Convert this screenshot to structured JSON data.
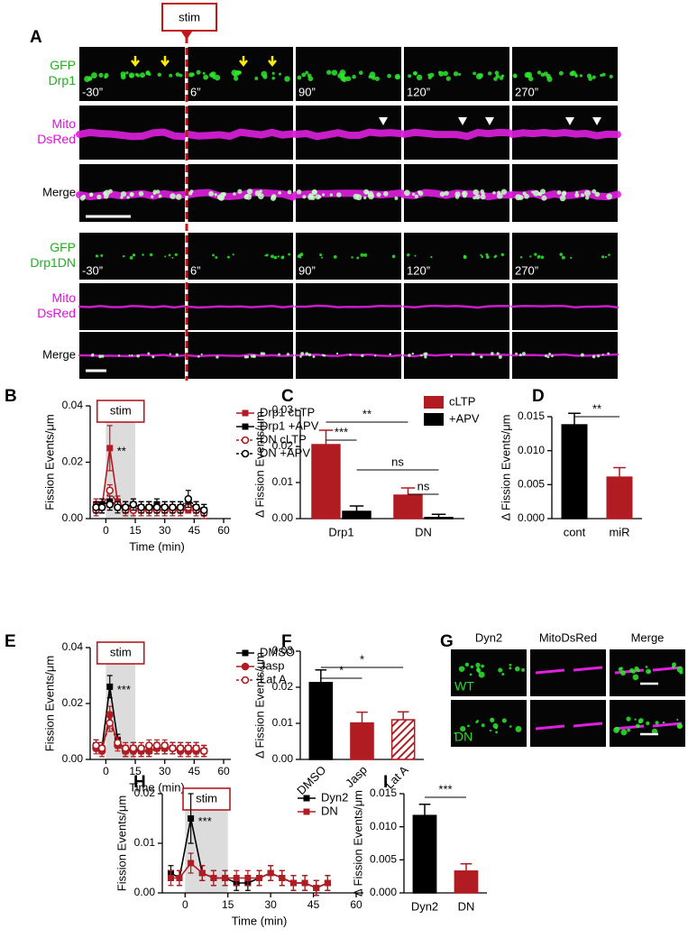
{
  "panel_labels": [
    "A",
    "B",
    "C",
    "D",
    "E",
    "F",
    "G",
    "H",
    "I"
  ],
  "panel_a": {
    "stim_label": "stim",
    "rows": [
      [
        "GFP",
        "Drp1"
      ],
      [
        "Mito",
        "DsRed"
      ],
      [
        "Merge"
      ],
      [
        "GFP",
        "Drp1DN"
      ],
      [
        "Mito",
        "DsRed"
      ],
      [
        "Merge"
      ]
    ],
    "time_labels": [
      "-30”",
      "6”",
      "90”",
      "120”",
      "270”"
    ]
  },
  "panel_g": {
    "headers": [
      "Dyn2",
      "MitoDsRed",
      "Merge"
    ],
    "rows": [
      "WT",
      "DN"
    ]
  },
  "chart_data": [
    {
      "type": "line",
      "ylabel": "Fission Events/μm",
      "xlabel": "Time (min)",
      "xlim": [
        -8,
        60
      ],
      "xticks": [
        0,
        15,
        30,
        45,
        60
      ],
      "ylim": [
        0,
        0.04
      ],
      "yticks": [
        {
          "value": 0,
          "label": "0.00"
        },
        {
          "value": 0.02,
          "label": "0.02"
        },
        {
          "value": 0.04,
          "label": "0.04"
        }
      ],
      "shade": {
        "range": [
          0,
          15
        ],
        "label": "stim"
      },
      "annotation": "**",
      "x": [
        -5,
        -2,
        2,
        6,
        10,
        14,
        18,
        22,
        26,
        30,
        34,
        38,
        42,
        46,
        50
      ],
      "series": [
        {
          "name": "Drp1 cLTP",
          "color": "#b01c22",
          "marker": "square",
          "dashed": false,
          "values": [
            0.005,
            0.004,
            0.025,
            0.006,
            0.003,
            0.004,
            0.003,
            0.004,
            0.003,
            0.003,
            0.004,
            0.003,
            0.003,
            0.003,
            0.002
          ],
          "errors": [
            0.002,
            0.002,
            0.008,
            0.002,
            0.001,
            0.002,
            0.001,
            0.002,
            0.001,
            0.001,
            0.002,
            0.001,
            0.001,
            0.001,
            0.001
          ]
        },
        {
          "name": "Drp1 +APV",
          "color": "#000000",
          "marker": "square",
          "dashed": false,
          "values": [
            0.004,
            0.005,
            0.006,
            0.005,
            0.004,
            0.005,
            0.004,
            0.004,
            0.005,
            0.004,
            0.004,
            0.004,
            0.005,
            0.004,
            0.003
          ],
          "errors": [
            0.002,
            0.002,
            0.002,
            0.002,
            0.002,
            0.002,
            0.002,
            0.002,
            0.002,
            0.002,
            0.002,
            0.002,
            0.002,
            0.002,
            0.002
          ]
        },
        {
          "name": "DN cLTP",
          "color": "#b01c22",
          "marker": "circle-open",
          "dashed": true,
          "values": [
            0.003,
            0.004,
            0.01,
            0.005,
            0.003,
            0.003,
            0.003,
            0.003,
            0.003,
            0.003,
            0.003,
            0.003,
            0.004,
            0.003,
            0.002
          ],
          "errors": [
            0.002,
            0.002,
            0.002,
            0.002,
            0.002,
            0.002,
            0.002,
            0.002,
            0.002,
            0.002,
            0.002,
            0.002,
            0.002,
            0.002,
            0.002
          ]
        },
        {
          "name": "DN +APV",
          "color": "#000000",
          "marker": "circle-open",
          "dashed": true,
          "values": [
            0.004,
            0.004,
            0.005,
            0.004,
            0.004,
            0.005,
            0.004,
            0.004,
            0.004,
            0.004,
            0.004,
            0.004,
            0.007,
            0.004,
            0.003
          ],
          "errors": [
            0.002,
            0.002,
            0.002,
            0.002,
            0.002,
            0.002,
            0.002,
            0.002,
            0.002,
            0.002,
            0.002,
            0.002,
            0.003,
            0.002,
            0.002
          ]
        }
      ]
    },
    {
      "type": "bar",
      "ylabel": "Δ Fission Events/μm",
      "ylim": [
        0,
        0.03
      ],
      "yticks": [
        {
          "value": 0,
          "label": "0.00"
        },
        {
          "value": 0.01,
          "label": "0.01"
        },
        {
          "value": 0.02,
          "label": "0.02"
        },
        {
          "value": 0.03,
          "label": "0.03"
        }
      ],
      "categories": [
        "Drp1",
        "DN"
      ],
      "series": [
        {
          "name": "cLTP",
          "color": "#b01c22",
          "values": [
            0.0205,
            0.0065
          ],
          "errors": [
            0.004,
            0.002
          ]
        },
        {
          "name": "+APV",
          "color": "#000000",
          "values": [
            0.002,
            0.0003
          ],
          "errors": [
            0.0015,
            0.0009
          ]
        }
      ],
      "annotations": [
        "***",
        "**",
        "ns",
        "ns"
      ]
    },
    {
      "type": "bar",
      "ylabel": "Δ Fission Events/μm",
      "ylim": [
        0,
        0.015
      ],
      "yticks": [
        {
          "value": 0,
          "label": "0.000"
        },
        {
          "value": 0.005,
          "label": "0.005"
        },
        {
          "value": 0.01,
          "label": "0.010"
        },
        {
          "value": 0.015,
          "label": "0.015"
        }
      ],
      "categories": [
        "cont",
        "miR"
      ],
      "values": [
        0.0138,
        0.0061
      ],
      "errors": [
        0.0017,
        0.0014
      ],
      "colors": [
        "#000000",
        "#b01c22"
      ],
      "annotations": [
        "**"
      ]
    },
    {
      "type": "line",
      "ylabel": "Fission Events/μm",
      "xlabel": "Time (min)",
      "xlim": [
        -8,
        60
      ],
      "xticks": [
        0,
        15,
        30,
        45,
        60
      ],
      "ylim": [
        0,
        0.04
      ],
      "yticks": [
        {
          "value": 0,
          "label": "0.00"
        },
        {
          "value": 0.02,
          "label": "0.02"
        },
        {
          "value": 0.04,
          "label": "0.04"
        }
      ],
      "shade": {
        "range": [
          0,
          15
        ],
        "label": "stim"
      },
      "annotation": "***",
      "x": [
        -5,
        -2,
        2,
        6,
        10,
        14,
        18,
        22,
        26,
        30,
        34,
        38,
        42,
        46,
        50
      ],
      "series": [
        {
          "name": "DMSO",
          "color": "#000000",
          "marker": "square",
          "dashed": false,
          "values": [
            0.005,
            0.004,
            0.026,
            0.007,
            0.003,
            0.004,
            0.003,
            0.003,
            0.004,
            0.004,
            0.004,
            0.004,
            0.004,
            0.004,
            0.003
          ],
          "errors": [
            0.002,
            0.002,
            0.004,
            0.002,
            0.002,
            0.002,
            0.002,
            0.002,
            0.002,
            0.002,
            0.002,
            0.002,
            0.002,
            0.002,
            0.002
          ]
        },
        {
          "name": "Jasp",
          "color": "#b01c22",
          "marker": "circle",
          "dashed": false,
          "values": [
            0.004,
            0.003,
            0.016,
            0.005,
            0.003,
            0.003,
            0.003,
            0.003,
            0.004,
            0.004,
            0.004,
            0.003,
            0.003,
            0.003,
            0.003
          ],
          "errors": [
            0.002,
            0.002,
            0.003,
            0.002,
            0.002,
            0.002,
            0.002,
            0.002,
            0.002,
            0.002,
            0.002,
            0.002,
            0.002,
            0.002,
            0.002
          ]
        },
        {
          "name": "Lat A",
          "color": "#b01c22",
          "marker": "circle-open",
          "dashed": true,
          "values": [
            0.005,
            0.004,
            0.013,
            0.006,
            0.004,
            0.004,
            0.004,
            0.005,
            0.005,
            0.005,
            0.004,
            0.004,
            0.004,
            0.004,
            0.003
          ],
          "errors": [
            0.002,
            0.002,
            0.003,
            0.002,
            0.002,
            0.002,
            0.002,
            0.002,
            0.002,
            0.002,
            0.002,
            0.002,
            0.002,
            0.002,
            0.002
          ]
        }
      ]
    },
    {
      "type": "bar",
      "ylabel": "Δ Fission Events/μm",
      "ylim": [
        0,
        0.03
      ],
      "yticks": [
        {
          "value": 0,
          "label": "0.00"
        },
        {
          "value": 0.01,
          "label": "0.01"
        },
        {
          "value": 0.02,
          "label": "0.02"
        },
        {
          "value": 0.03,
          "label": "0.03"
        }
      ],
      "categories": [
        "DMSO",
        "Jasp",
        "Lat A"
      ],
      "values": [
        0.0213,
        0.0101,
        0.011
      ],
      "errors": [
        0.0035,
        0.003,
        0.0022
      ],
      "colors": [
        "#000000",
        "#b01c22",
        "#b01c22"
      ],
      "hatched": [
        false,
        false,
        true
      ],
      "annotations": [
        "*",
        "*"
      ]
    },
    {
      "type": "line",
      "ylabel": "Fission Events/μm",
      "xlabel": "Time (min)",
      "xlim": [
        -8,
        60
      ],
      "xticks": [
        0,
        15,
        30,
        45,
        60
      ],
      "ylim": [
        0,
        0.02
      ],
      "yticks": [
        {
          "value": 0,
          "label": "0.00"
        },
        {
          "value": 0.01,
          "label": "0.01"
        },
        {
          "value": 0.02,
          "label": "0.02"
        }
      ],
      "shade": {
        "range": [
          0,
          15
        ],
        "label": "stim"
      },
      "annotation": "***",
      "x": [
        -5,
        -2,
        2,
        6,
        10,
        14,
        18,
        22,
        26,
        30,
        34,
        38,
        42,
        46,
        50
      ],
      "series": [
        {
          "name": "Dyn2",
          "color": "#000000",
          "marker": "square",
          "dashed": false,
          "values": [
            0.004,
            0.003,
            0.015,
            0.004,
            0.003,
            0.003,
            0.002,
            0.002,
            0.003,
            0.004,
            0.003,
            0.002,
            0.002,
            0.001,
            0.002
          ],
          "errors": [
            0.0015,
            0.0015,
            0.005,
            0.0015,
            0.0015,
            0.0015,
            0.0015,
            0.0015,
            0.0015,
            0.0015,
            0.0015,
            0.0015,
            0.0015,
            0.0015,
            0.0015
          ]
        },
        {
          "name": "DN",
          "color": "#b01c22",
          "marker": "square",
          "dashed": false,
          "values": [
            0.003,
            0.003,
            0.006,
            0.004,
            0.003,
            0.003,
            0.003,
            0.003,
            0.003,
            0.004,
            0.003,
            0.002,
            0.002,
            0.001,
            0.002
          ],
          "errors": [
            0.0015,
            0.0015,
            0.002,
            0.0015,
            0.0015,
            0.0015,
            0.0015,
            0.0015,
            0.0015,
            0.0015,
            0.0015,
            0.0015,
            0.0015,
            0.0015,
            0.0015
          ]
        }
      ]
    },
    {
      "type": "bar",
      "ylabel": "Δ Fission Events/μm",
      "ylim": [
        0,
        0.015
      ],
      "yticks": [
        {
          "value": 0,
          "label": "0.000"
        },
        {
          "value": 0.005,
          "label": "0.005"
        },
        {
          "value": 0.01,
          "label": "0.010"
        },
        {
          "value": 0.015,
          "label": "0.015"
        }
      ],
      "categories": [
        "Dyn2",
        "DN"
      ],
      "values": [
        0.0117,
        0.0033
      ],
      "errors": [
        0.0017,
        0.0011
      ],
      "colors": [
        "#000000",
        "#b01c22"
      ],
      "annotations": [
        "***"
      ]
    }
  ]
}
